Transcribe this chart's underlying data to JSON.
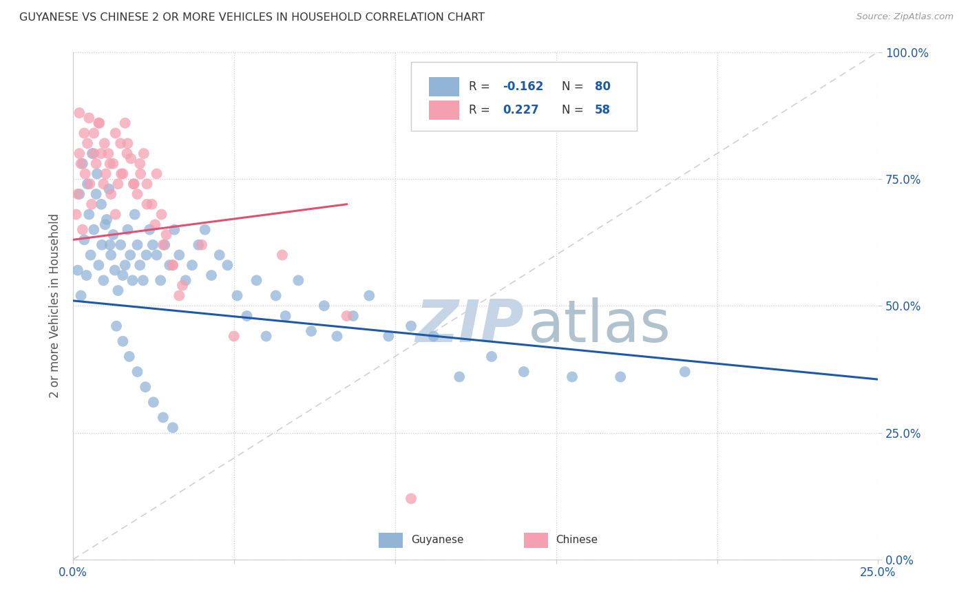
{
  "title": "GUYANESE VS CHINESE 2 OR MORE VEHICLES IN HOUSEHOLD CORRELATION CHART",
  "source": "Source: ZipAtlas.com",
  "ylabel": "2 or more Vehicles in Household",
  "xlim": [
    0.0,
    25.0
  ],
  "ylim": [
    0.0,
    100.0
  ],
  "yticks": [
    0.0,
    25.0,
    50.0,
    75.0,
    100.0
  ],
  "xticks": [
    0.0,
    5.0,
    10.0,
    15.0,
    20.0,
    25.0
  ],
  "guyanese_R": -0.162,
  "guyanese_N": 80,
  "chinese_R": 0.227,
  "chinese_N": 58,
  "blue_color": "#92B4D7",
  "pink_color": "#F4A0B0",
  "blue_line_color": "#1C5AA8",
  "pink_line_color": "#E05070",
  "diagonal_color": "#CCCCCC",
  "blue_line_x": [
    0.0,
    25.0
  ],
  "blue_line_y": [
    51.0,
    35.5
  ],
  "pink_line_x": [
    0.0,
    8.5
  ],
  "pink_line_y": [
    63.0,
    70.0
  ],
  "guyanese_x": [
    0.15,
    0.25,
    0.35,
    0.42,
    0.5,
    0.55,
    0.65,
    0.72,
    0.8,
    0.9,
    0.95,
    1.05,
    1.12,
    1.18,
    1.25,
    1.3,
    1.4,
    1.48,
    1.55,
    1.62,
    1.7,
    1.78,
    1.85,
    1.92,
    2.0,
    2.08,
    2.18,
    2.28,
    2.38,
    2.48,
    2.6,
    2.72,
    2.85,
    3.0,
    3.15,
    3.3,
    3.5,
    3.7,
    3.9,
    4.1,
    4.3,
    4.55,
    4.8,
    5.1,
    5.4,
    5.7,
    6.0,
    6.3,
    6.6,
    7.0,
    7.4,
    7.8,
    8.2,
    8.7,
    9.2,
    9.8,
    10.5,
    11.2,
    12.0,
    13.0,
    14.0,
    15.5,
    17.0,
    19.0,
    0.2,
    0.3,
    0.45,
    0.6,
    0.75,
    0.88,
    1.0,
    1.15,
    1.35,
    1.55,
    1.75,
    2.0,
    2.25,
    2.5,
    2.8,
    3.1
  ],
  "guyanese_y": [
    57.0,
    52.0,
    63.0,
    56.0,
    68.0,
    60.0,
    65.0,
    72.0,
    58.0,
    62.0,
    55.0,
    67.0,
    73.0,
    60.0,
    64.0,
    57.0,
    53.0,
    62.0,
    56.0,
    58.0,
    65.0,
    60.0,
    55.0,
    68.0,
    62.0,
    58.0,
    55.0,
    60.0,
    65.0,
    62.0,
    60.0,
    55.0,
    62.0,
    58.0,
    65.0,
    60.0,
    55.0,
    58.0,
    62.0,
    65.0,
    56.0,
    60.0,
    58.0,
    52.0,
    48.0,
    55.0,
    44.0,
    52.0,
    48.0,
    55.0,
    45.0,
    50.0,
    44.0,
    48.0,
    52.0,
    44.0,
    46.0,
    44.0,
    36.0,
    40.0,
    37.0,
    36.0,
    36.0,
    37.0,
    72.0,
    78.0,
    74.0,
    80.0,
    76.0,
    70.0,
    66.0,
    62.0,
    46.0,
    43.0,
    40.0,
    37.0,
    34.0,
    31.0,
    28.0,
    26.0
  ],
  "chinese_x": [
    0.1,
    0.15,
    0.2,
    0.25,
    0.3,
    0.38,
    0.45,
    0.52,
    0.58,
    0.65,
    0.72,
    0.8,
    0.88,
    0.95,
    1.02,
    1.1,
    1.18,
    1.25,
    1.32,
    1.4,
    1.48,
    1.55,
    1.62,
    1.7,
    1.8,
    1.9,
    2.0,
    2.1,
    2.2,
    2.3,
    2.45,
    2.6,
    2.75,
    2.9,
    3.1,
    3.3,
    4.0,
    5.0,
    6.5,
    8.5,
    10.5,
    0.2,
    0.35,
    0.5,
    0.65,
    0.82,
    0.98,
    1.15,
    1.32,
    1.5,
    1.68,
    1.88,
    2.08,
    2.3,
    2.55,
    2.8,
    3.1,
    3.4
  ],
  "chinese_y": [
    68.0,
    72.0,
    80.0,
    78.0,
    65.0,
    76.0,
    82.0,
    74.0,
    70.0,
    84.0,
    78.0,
    86.0,
    80.0,
    74.0,
    76.0,
    80.0,
    72.0,
    78.0,
    68.0,
    74.0,
    82.0,
    76.0,
    86.0,
    82.0,
    79.0,
    74.0,
    72.0,
    76.0,
    80.0,
    74.0,
    70.0,
    76.0,
    68.0,
    64.0,
    58.0,
    52.0,
    62.0,
    44.0,
    60.0,
    48.0,
    12.0,
    88.0,
    84.0,
    87.0,
    80.0,
    86.0,
    82.0,
    78.0,
    84.0,
    76.0,
    80.0,
    74.0,
    78.0,
    70.0,
    66.0,
    62.0,
    58.0,
    54.0
  ]
}
